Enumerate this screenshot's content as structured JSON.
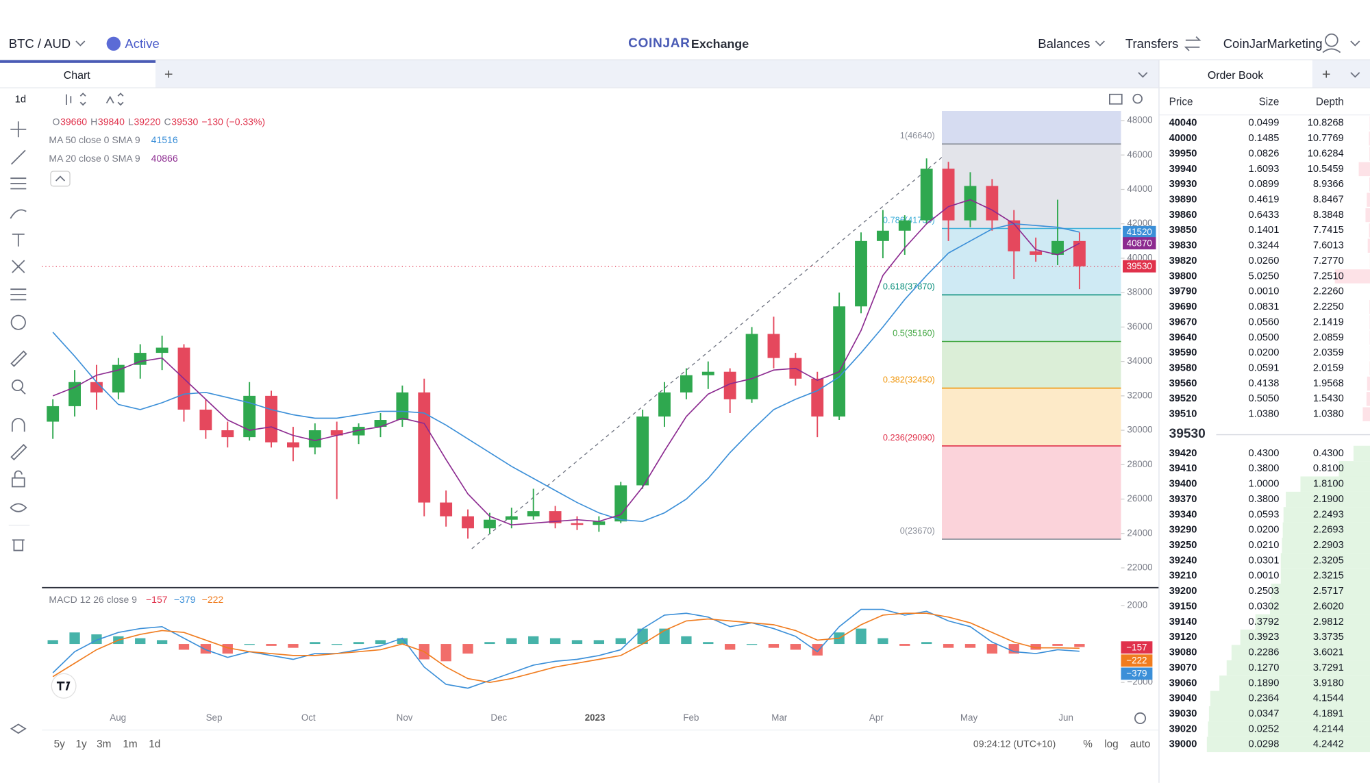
{
  "header": {
    "pair": "BTC / AUD",
    "status": "Active",
    "brand": "COINJAR",
    "product": "Exchange",
    "nav": [
      "Balances",
      "Transfers",
      "CoinJarMarketing"
    ]
  },
  "tabs": {
    "chart": "Chart",
    "plus": "+",
    "order_book": "Order Book"
  },
  "toolbar": {
    "interval": "1d"
  },
  "chart": {
    "ohlc_legend": [
      "O",
      "39660",
      "H",
      "39840",
      "L",
      "39220",
      "C",
      "39530",
      "−130 (−0.33%)"
    ],
    "ma_legends": [
      {
        "name": "MA 50 close 0 SMA 9",
        "value": "41516"
      },
      {
        "name": "MA 20 close 0 SMA 9",
        "value": "40866"
      }
    ],
    "yticks": [
      48000,
      46000,
      44000,
      42000,
      40000,
      38000,
      36000,
      34000,
      32000,
      30000,
      28000,
      26000,
      24000,
      22000
    ],
    "xlabels": [
      "Aug",
      "Sep",
      "Oct",
      "Nov",
      "Dec",
      "2023",
      "Feb",
      "Mar",
      "Apr",
      "May",
      "Jun"
    ],
    "candles": [
      [
        30500,
        31800,
        29500,
        31400
      ],
      [
        31400,
        33500,
        30800,
        32800
      ],
      [
        32800,
        33800,
        31200,
        32200
      ],
      [
        32200,
        34200,
        31800,
        33800
      ],
      [
        33800,
        35000,
        33000,
        34500
      ],
      [
        34500,
        35500,
        33500,
        34800
      ],
      [
        34800,
        35000,
        30500,
        31200
      ],
      [
        31200,
        31800,
        29500,
        30000
      ],
      [
        30000,
        30500,
        29000,
        29600
      ],
      [
        29600,
        32800,
        29400,
        32000
      ],
      [
        32000,
        32300,
        29000,
        29300
      ],
      [
        29300,
        30200,
        28200,
        29000
      ],
      [
        29000,
        30400,
        28600,
        30000
      ],
      [
        30000,
        30500,
        26000,
        29700
      ],
      [
        29700,
        30400,
        29200,
        30200
      ],
      [
        30200,
        31000,
        29600,
        30600
      ],
      [
        30600,
        32600,
        30200,
        32200
      ],
      [
        32200,
        33000,
        25000,
        25800
      ],
      [
        25800,
        26500,
        24400,
        25000
      ],
      [
        25000,
        25400,
        23700,
        24300
      ],
      [
        24300,
        25200,
        24000,
        24800
      ],
      [
        24800,
        25500,
        24300,
        25000
      ],
      [
        25000,
        26600,
        24800,
        25300
      ],
      [
        25300,
        25600,
        24300,
        24600
      ],
      [
        24600,
        25000,
        24200,
        24500
      ],
      [
        24500,
        25000,
        24100,
        24700
      ],
      [
        24700,
        27000,
        24600,
        26800
      ],
      [
        26800,
        31200,
        26600,
        30800
      ],
      [
        30800,
        32800,
        30200,
        32200
      ],
      [
        32200,
        33600,
        31800,
        33200
      ],
      [
        33200,
        34000,
        32400,
        33400
      ],
      [
        33400,
        33600,
        31000,
        31800
      ],
      [
        31800,
        36000,
        31600,
        35600
      ],
      [
        35600,
        36600,
        33600,
        34200
      ],
      [
        34200,
        34500,
        32600,
        33000
      ],
      [
        33000,
        33400,
        29600,
        30800
      ],
      [
        30800,
        38000,
        30600,
        37200
      ],
      [
        37200,
        41500,
        36800,
        41000
      ],
      [
        41000,
        42800,
        40000,
        41600
      ],
      [
        41600,
        42500,
        40200,
        42200
      ],
      [
        42200,
        45800,
        42000,
        45200
      ],
      [
        45200,
        45600,
        41000,
        42200
      ],
      [
        42200,
        45000,
        41800,
        44200
      ],
      [
        44200,
        44600,
        41600,
        42200
      ],
      [
        42200,
        42800,
        38800,
        40400
      ],
      [
        40400,
        41200,
        39800,
        40200
      ],
      [
        40200,
        43400,
        39600,
        41000
      ],
      [
        41000,
        41500,
        38200,
        39530
      ]
    ],
    "ma50": [
      35700,
      34300,
      32800,
      31500,
      31200,
      31600,
      32100,
      32200,
      31900,
      31600,
      31200,
      30900,
      30700,
      30700,
      30900,
      31100,
      31100,
      31000,
      30300,
      29500,
      28700,
      27900,
      27200,
      26500,
      25800,
      25200,
      24800,
      24700,
      25200,
      26000,
      27200,
      28700,
      30000,
      31200,
      31800,
      32300,
      33100,
      34500,
      36000,
      37600,
      39000,
      40300,
      41000,
      41700,
      42000,
      41900,
      41800,
      41516
    ],
    "ma20": [
      32000,
      32500,
      33200,
      33500,
      34000,
      34200,
      33000,
      31800,
      30600,
      30000,
      30200,
      29700,
      29400,
      29700,
      30000,
      30200,
      30700,
      30400,
      28300,
      26300,
      25000,
      24500,
      24600,
      24700,
      24800,
      24700,
      25100,
      26700,
      28800,
      30800,
      32100,
      32700,
      33000,
      33500,
      33600,
      32900,
      33400,
      35800,
      39000,
      40600,
      42000,
      43000,
      43400,
      42800,
      42000,
      40500,
      40200,
      40866
    ],
    "fib": [
      {
        "label": "1(46640)",
        "value": 46640
      },
      {
        "label": "0.786(41730)",
        "value": 41730
      },
      {
        "label": "0.618(37870)",
        "value": 37870
      },
      {
        "label": "0.5(35160)",
        "value": 35160
      },
      {
        "label": "0.382(32450)",
        "value": 32450
      },
      {
        "label": "0.236(29090)",
        "value": 29090
      },
      {
        "label": "0(23670)",
        "value": 23670
      }
    ],
    "price_labels": [
      41520,
      40870,
      39530
    ],
    "macd": {
      "legend": "MACD 12 26 close 9",
      "legend_values": [
        "−157",
        "−379",
        "−222"
      ],
      "macd": [
        -1500,
        -400,
        200,
        600,
        800,
        900,
        300,
        -300,
        -700,
        -400,
        -600,
        -800,
        -500,
        -500,
        -300,
        -100,
        300,
        -1200,
        -2100,
        -2300,
        -1900,
        -1500,
        -1100,
        -900,
        -800,
        -600,
        -300,
        800,
        1500,
        1600,
        1400,
        900,
        1100,
        800,
        400,
        -400,
        900,
        1800,
        1800,
        1500,
        1700,
        1200,
        900,
        100,
        -400,
        -500,
        -300,
        -379
      ],
      "signal": [
        -1700,
        -1000,
        -300,
        200,
        500,
        700,
        600,
        200,
        -200,
        -400,
        -500,
        -600,
        -600,
        -500,
        -400,
        -300,
        0,
        -400,
        -1200,
        -1800,
        -2000,
        -1800,
        -1500,
        -1200,
        -1000,
        -800,
        -600,
        0,
        700,
        1200,
        1300,
        1200,
        1100,
        1000,
        700,
        200,
        300,
        1000,
        1500,
        1600,
        1600,
        1400,
        1100,
        600,
        100,
        -200,
        -200,
        -222
      ],
      "hist": [
        200,
        600,
        500,
        400,
        300,
        200,
        -300,
        -500,
        -500,
        0,
        -100,
        -200,
        100,
        0,
        100,
        200,
        300,
        -800,
        -900,
        -500,
        100,
        300,
        400,
        300,
        200,
        200,
        300,
        800,
        800,
        400,
        100,
        -300,
        0,
        -200,
        -300,
        -600,
        600,
        800,
        300,
        -100,
        100,
        -200,
        -200,
        -500,
        -500,
        -300,
        -100,
        -157
      ],
      "yticks": [
        2000,
        {
          "value": -2000,
          "label": "−2000"
        }
      ],
      "labels": [
        {
          "value": -157,
          "label": "−157"
        },
        {
          "value": -222,
          "label": "−222"
        },
        {
          "value": -379,
          "label": "−379"
        }
      ]
    }
  },
  "footer": {
    "ranges": [
      "5y",
      "1y",
      "3m",
      "1m",
      "1d"
    ],
    "time": "09:24:12 (UTC+10)",
    "options": [
      "%",
      "log",
      "auto"
    ]
  },
  "order_book": {
    "columns": [
      "Price",
      "Size",
      "Depth"
    ],
    "asks": [
      [
        "40040",
        "0.0499",
        "10.8268"
      ],
      [
        "40000",
        "0.1485",
        "10.7769"
      ],
      [
        "39950",
        "0.0826",
        "10.6284"
      ],
      [
        "39940",
        "1.6093",
        "10.5459"
      ],
      [
        "39930",
        "0.0899",
        "8.9366"
      ],
      [
        "39890",
        "0.4619",
        "8.8467"
      ],
      [
        "39860",
        "0.6433",
        "8.3848"
      ],
      [
        "39850",
        "0.1401",
        "7.7415"
      ],
      [
        "39830",
        "0.3244",
        "7.6013"
      ],
      [
        "39820",
        "0.0260",
        "7.2770"
      ],
      [
        "39800",
        "5.0250",
        "7.2510"
      ],
      [
        "39790",
        "0.0010",
        "2.2260"
      ],
      [
        "39690",
        "0.0831",
        "2.2250"
      ],
      [
        "39670",
        "0.0560",
        "2.1419"
      ],
      [
        "39640",
        "0.0500",
        "2.0859"
      ],
      [
        "39590",
        "0.0200",
        "2.0359"
      ],
      [
        "39580",
        "0.0591",
        "2.0159"
      ],
      [
        "39560",
        "0.4138",
        "1.9568"
      ],
      [
        "39520",
        "0.5050",
        "1.5430"
      ],
      [
        "39510",
        "1.0380",
        "1.0380"
      ]
    ],
    "mid": "39530",
    "bids": [
      [
        "39420",
        "0.4300",
        "0.4300"
      ],
      [
        "39410",
        "0.3800",
        "0.8100"
      ],
      [
        "39400",
        "1.0000",
        "1.8100"
      ],
      [
        "39370",
        "0.3800",
        "2.1900"
      ],
      [
        "39340",
        "0.0593",
        "2.2493"
      ],
      [
        "39290",
        "0.0200",
        "2.2693"
      ],
      [
        "39250",
        "0.0210",
        "2.2903"
      ],
      [
        "39240",
        "0.0301",
        "2.3205"
      ],
      [
        "39210",
        "0.0010",
        "2.3215"
      ],
      [
        "39200",
        "0.2503",
        "2.5717"
      ],
      [
        "39150",
        "0.0302",
        "2.6020"
      ],
      [
        "39140",
        "0.3792",
        "2.9812"
      ],
      [
        "39120",
        "0.3923",
        "3.3735"
      ],
      [
        "39080",
        "0.2286",
        "3.6021"
      ],
      [
        "39070",
        "0.1270",
        "3.7291"
      ],
      [
        "39060",
        "0.1890",
        "3.9180"
      ],
      [
        "39040",
        "0.2364",
        "4.1544"
      ],
      [
        "39030",
        "0.0347",
        "4.1891"
      ],
      [
        "39020",
        "0.0252",
        "4.2144"
      ],
      [
        "39000",
        "0.0298",
        "4.2442"
      ]
    ]
  }
}
